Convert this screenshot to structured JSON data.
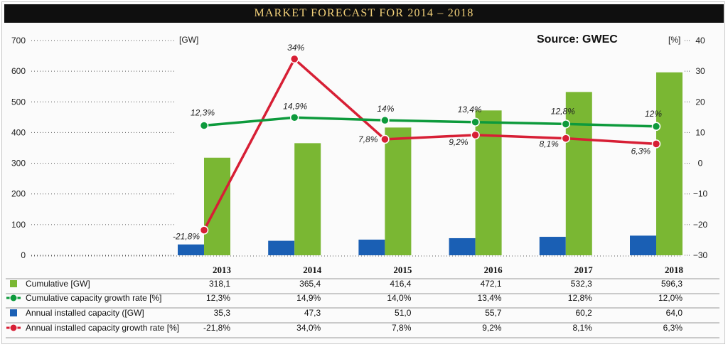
{
  "title": "MARKET FORECAST FOR 2014 – 2018",
  "source": "Source: GWEC",
  "colors": {
    "cumulative": "#7ab733",
    "annual": "#1a5fb4",
    "cum_growth": "#0d9a3c",
    "ann_growth": "#d71f35",
    "title_bg": "#0f0f0f",
    "title_text": "#f4d27a"
  },
  "chart_data": {
    "type": "bar",
    "title": "MARKET FORECAST FOR 2014 – 2018",
    "categories": [
      "2013",
      "2014",
      "2015",
      "2016",
      "2017",
      "2018"
    ],
    "y_left": {
      "unit": "[GW]",
      "ylim": [
        0,
        700
      ],
      "ticks": [
        "700",
        "600",
        "500",
        "400",
        "300",
        "200",
        "100",
        "0"
      ]
    },
    "y_right": {
      "unit": "[%]",
      "ylim": [
        -30,
        40
      ],
      "ticks": [
        "40",
        "30",
        "20",
        "10",
        "0",
        "−10",
        "−20",
        "−30"
      ]
    },
    "series": [
      {
        "name": "Cumulative [GW]",
        "kind": "bar",
        "axis": "left",
        "values": [
          318.1,
          365.4,
          416.4,
          472.1,
          532.3,
          596.3
        ],
        "table": [
          "318,1",
          "365,4",
          "416,4",
          "472,1",
          "532,3",
          "596,3"
        ]
      },
      {
        "name": "Cumulative capacity growth rate [%]",
        "kind": "line",
        "axis": "right",
        "values": [
          12.3,
          14.9,
          14.0,
          13.4,
          12.8,
          12.0
        ],
        "labels": [
          "12,3%",
          "14,9%",
          "14%",
          "13,4%",
          "12,8%",
          "12%"
        ],
        "table": [
          "12,3%",
          "14,9%",
          "14,0%",
          "13,4%",
          "12,8%",
          "12,0%"
        ]
      },
      {
        "name": "Annual installed capacity ([GW]",
        "kind": "bar",
        "axis": "left",
        "values": [
          35.3,
          47.3,
          51.0,
          55.7,
          60.2,
          64.0
        ],
        "table": [
          "35,3",
          "47,3",
          "51,0",
          "55,7",
          "60,2",
          "64,0"
        ]
      },
      {
        "name": "Annual installed capacity growth rate [%]",
        "kind": "line",
        "axis": "right",
        "values": [
          -21.8,
          34.0,
          7.8,
          9.2,
          8.1,
          6.3
        ],
        "labels": [
          "-21,8%",
          "34%",
          "7,8%",
          "9,2%",
          "8,1%",
          "6,3%"
        ],
        "table": [
          "-21,8%",
          "34,0%",
          "7,8%",
          "9,2%",
          "8,1%",
          "6,3%"
        ]
      }
    ]
  }
}
